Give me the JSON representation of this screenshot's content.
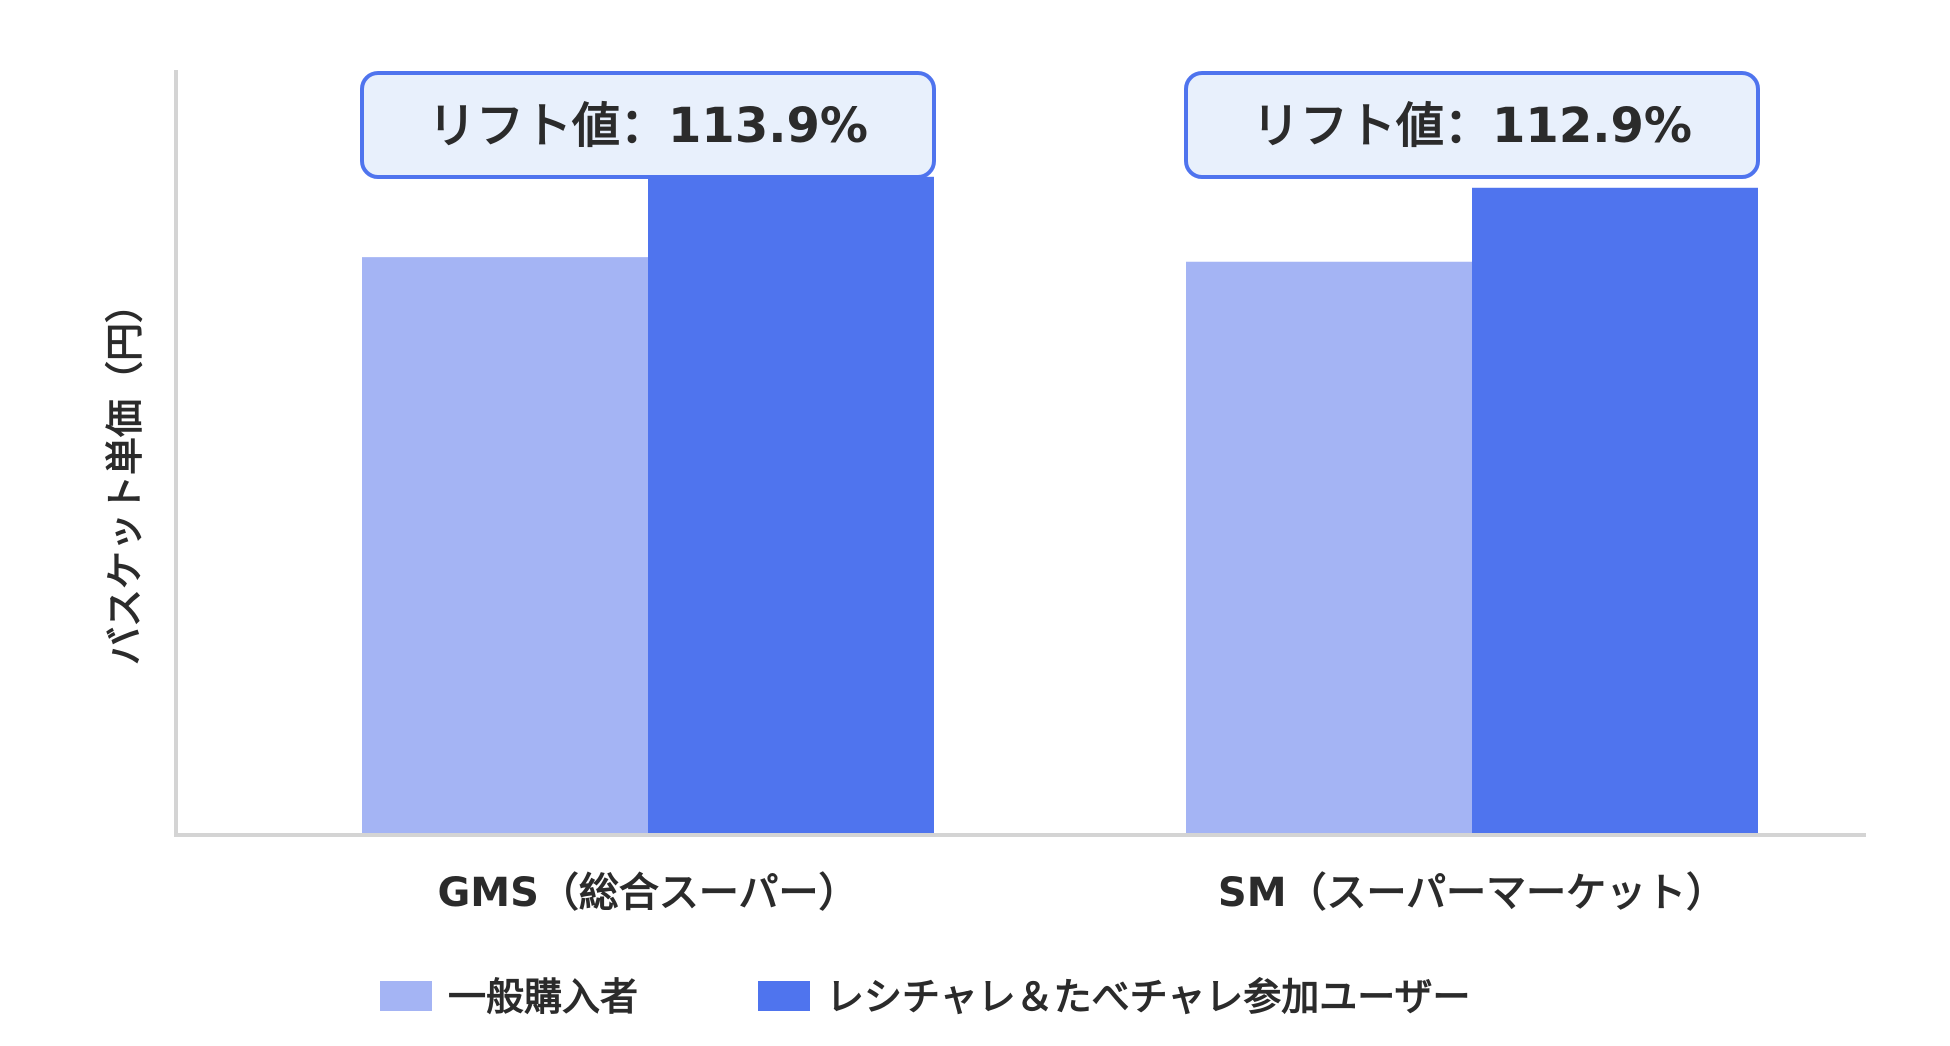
{
  "chart_data": {
    "type": "bar",
    "ylabel": "バスケット単価（円）",
    "categories": [
      "GMS（総合スーパー）",
      "SM（スーパーマーケット）"
    ],
    "series": [
      {
        "name": "一般購入者",
        "color": "#a4b4f4",
        "values": [
          100,
          99.2
        ]
      },
      {
        "name": "レシチャレ＆たべチャレ参加ユーザー",
        "color": "#4f74ee",
        "values": [
          113.9,
          112.0
        ]
      }
    ],
    "ylim": [
      0,
      122
    ],
    "y_ticks_shown": false,
    "grid": false,
    "legend_position": "bottom",
    "annotations": [
      {
        "category": "GMS（総合スーパー）",
        "text": "リフト値：113.9%"
      },
      {
        "category": "SM（スーパーマーケット）",
        "text": "リフト値：112.9%"
      }
    ],
    "annotation_style": {
      "fill": "#e8f0fc",
      "border": "#4f74ee"
    },
    "axis_color": "#d4d4d4"
  }
}
